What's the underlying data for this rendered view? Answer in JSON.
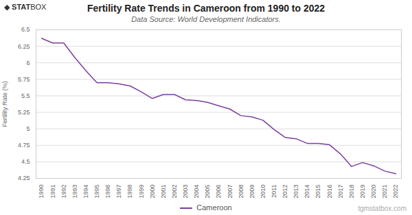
{
  "chart_data": {
    "type": "line",
    "title": "Fertility Rate Trends in Cameroon from 1990 to 2022",
    "subtitle": "Data Source: World Development Indicators.",
    "y_label": "Fertility Rate (%)",
    "annotations": [
      "◆ STATBOX",
      "tgmstatbox.com"
    ],
    "x": [
      1990,
      1991,
      1992,
      1993,
      1994,
      1995,
      1996,
      1997,
      1998,
      1999,
      2000,
      2001,
      2002,
      2003,
      2004,
      2005,
      2006,
      2007,
      2008,
      2009,
      2010,
      2011,
      2012,
      2013,
      2014,
      2015,
      2016,
      2017,
      2018,
      2019,
      2020,
      2021,
      2022
    ],
    "series": [
      {
        "name": "Cameroon",
        "color": "#7B3F9E",
        "values": [
          6.37,
          6.3,
          6.3,
          6.08,
          5.88,
          5.7,
          5.7,
          5.68,
          5.65,
          5.56,
          5.46,
          5.52,
          5.52,
          5.44,
          5.43,
          5.4,
          5.35,
          5.3,
          5.2,
          5.18,
          5.13,
          4.99,
          4.87,
          4.85,
          4.78,
          4.78,
          4.76,
          4.62,
          4.43,
          4.49,
          4.44,
          4.36,
          4.32
        ]
      }
    ],
    "xlim": [
      1989.5,
      2022.5
    ],
    "xticks": [
      1990,
      1991,
      1992,
      1993,
      1994,
      1995,
      1996,
      1997,
      1998,
      1999,
      2000,
      2001,
      2002,
      2003,
      2004,
      2005,
      2006,
      2007,
      2008,
      2009,
      2010,
      2011,
      2012,
      2013,
      2014,
      2015,
      2016,
      2017,
      2018,
      2019,
      2020,
      2021,
      2022
    ],
    "ylim": [
      4.25,
      6.5
    ],
    "yticks": [
      4.25,
      4.5,
      4.75,
      5,
      5.25,
      5.5,
      5.75,
      6,
      6.25,
      6.5
    ],
    "grid": true,
    "legend": "bottom"
  }
}
